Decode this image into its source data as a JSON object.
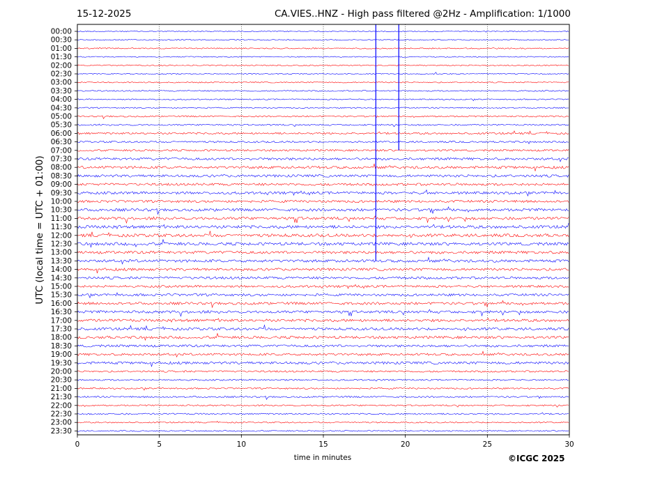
{
  "header": {
    "date": "15-12-2025",
    "title": "CA.VIES..HNZ - High pass filtered @2Hz - Amplification: 1/1000"
  },
  "axes": {
    "xlabel": "time in minutes",
    "ylabel": "UTC (local time = UTC + 01:00)"
  },
  "footer": {
    "copyright": "©ICGC 2025"
  },
  "colors": {
    "trace_a": "#ff0000",
    "trace_b": "#0000ff",
    "axis": "#000000"
  },
  "chart_data": {
    "type": "line",
    "title": "CA.VIES..HNZ - High pass filtered @2Hz - Amplification: 1/1000",
    "xlabel": "time in minutes",
    "ylabel": "UTC (local time = UTC + 01:00)",
    "xlim": [
      0,
      30
    ],
    "x_ticks": [
      0,
      5,
      10,
      15,
      20,
      25,
      30
    ],
    "grid": "vertical dotted lines at 5, 10, 15, 20, 25",
    "rows": [
      "00:00",
      "00:30",
      "01:00",
      "01:30",
      "02:00",
      "02:30",
      "03:00",
      "03:30",
      "04:00",
      "04:30",
      "05:00",
      "05:30",
      "06:00",
      "06:30",
      "07:00",
      "07:30",
      "08:00",
      "08:30",
      "09:00",
      "09:30",
      "10:00",
      "10:30",
      "11:00",
      "11:30",
      "12:00",
      "12:30",
      "13:00",
      "13:30",
      "14:00",
      "14:30",
      "15:00",
      "15:30",
      "16:00",
      "16:30",
      "17:00",
      "17:30",
      "18:00",
      "18:30",
      "19:00",
      "19:30",
      "20:00",
      "20:30",
      "21:00",
      "21:30",
      "22:00",
      "22:30",
      "23:00",
      "23:30"
    ],
    "row_colors": [
      "trace_a_even_rows_blue_odd_rows_alternating"
    ],
    "activity": [
      0.05,
      0.05,
      0.1,
      0.05,
      0.08,
      0.06,
      0.1,
      0.12,
      0.1,
      0.1,
      0.2,
      0.2,
      0.35,
      0.3,
      0.35,
      0.5,
      0.55,
      0.55,
      0.5,
      0.55,
      0.5,
      0.6,
      0.6,
      0.7,
      0.7,
      0.7,
      0.6,
      0.6,
      0.55,
      0.5,
      0.45,
      0.5,
      0.55,
      0.55,
      0.6,
      0.55,
      0.55,
      0.5,
      0.45,
      0.55,
      0.3,
      0.2,
      0.2,
      0.25,
      0.2,
      0.2,
      0.15,
      0.1
    ],
    "row_color_pattern": [
      "blue",
      "blue",
      "red",
      "blue",
      "red",
      "blue",
      "red",
      "blue",
      "blue",
      "blue",
      "red",
      "blue",
      "red",
      "blue",
      "red",
      "blue",
      "red",
      "blue",
      "red",
      "blue",
      "red",
      "blue",
      "red",
      "blue",
      "red",
      "blue",
      "red",
      "blue",
      "red",
      "blue",
      "red",
      "blue",
      "red",
      "blue",
      "red",
      "blue",
      "red",
      "blue",
      "red",
      "blue",
      "red",
      "blue",
      "red",
      "blue",
      "red",
      "blue",
      "red",
      "blue"
    ],
    "spikes": [
      {
        "x_minutes": 18.2,
        "from_row": "00:00",
        "to_row": "13:30"
      },
      {
        "x_minutes": 19.6,
        "from_row": "00:00",
        "to_row": "07:00"
      }
    ]
  }
}
